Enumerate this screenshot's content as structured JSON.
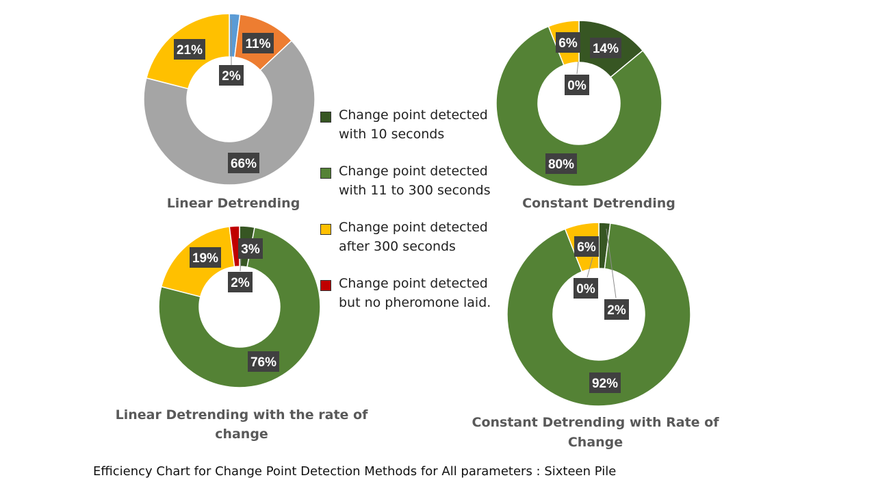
{
  "caption": "Efficiency Chart for Change Point Detection Methods for All parameters : Sixteen Pile",
  "legend": {
    "items": [
      {
        "line1": "Change point detected",
        "line2": "with 10 seconds",
        "color": "#375623"
      },
      {
        "line1": "Change point detected",
        "line2": "with 11 to 300 seconds",
        "color": "#548235"
      },
      {
        "line1": "Change point detected",
        "line2": "after 300 seconds",
        "color": "#FFC000"
      },
      {
        "line1": "Change point detected",
        "line2": "but no pheromone laid.",
        "color": "#C00000"
      }
    ]
  },
  "chart_data": [
    {
      "type": "pie",
      "title": "Linear Detrending",
      "slices": [
        {
          "label": "2%",
          "value": 2,
          "color": "#5B9BD5"
        },
        {
          "label": "11%",
          "value": 11,
          "color": "#ED7D31"
        },
        {
          "label": "66%",
          "value": 66,
          "color": "#A5A5A5"
        },
        {
          "label": "21%",
          "value": 21,
          "color": "#FFC000"
        }
      ]
    },
    {
      "type": "pie",
      "title": "Constant Detrending",
      "slices": [
        {
          "label": "14%",
          "value": 14,
          "color": "#375623"
        },
        {
          "label": "80%",
          "value": 80,
          "color": "#548235"
        },
        {
          "label": "6%",
          "value": 6,
          "color": "#FFC000"
        },
        {
          "label": "0%",
          "value": 0,
          "color": "#C00000"
        }
      ]
    },
    {
      "type": "pie",
      "title": "Linear Detrending with  the rate of change",
      "slices": [
        {
          "label": "3%",
          "value": 3,
          "color": "#375623"
        },
        {
          "label": "76%",
          "value": 76,
          "color": "#548235"
        },
        {
          "label": "19%",
          "value": 19,
          "color": "#FFC000"
        },
        {
          "label": "2%",
          "value": 2,
          "color": "#C00000"
        }
      ]
    },
    {
      "type": "pie",
      "title": "Constant Detrending with Rate of Change",
      "slices": [
        {
          "label": "2%",
          "value": 2,
          "color": "#375623"
        },
        {
          "label": "92%",
          "value": 92,
          "color": "#548235"
        },
        {
          "label": "6%",
          "value": 6,
          "color": "#FFC000"
        },
        {
          "label": "0%",
          "value": 0,
          "color": "#C00000"
        }
      ]
    }
  ]
}
